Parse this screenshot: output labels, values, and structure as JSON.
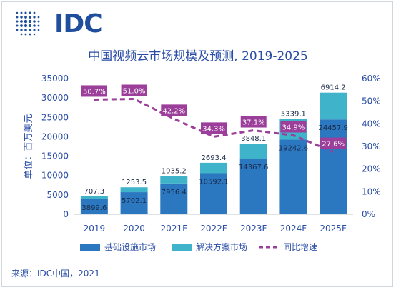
{
  "brand": {
    "name": "IDC",
    "icon": "idc-globe-icon"
  },
  "title": "中国视频云市场规模及预测, 2019-2025",
  "source": "来源：IDC中国，2021",
  "colors": {
    "infra": "#2b78c0",
    "solution": "#3fb3c9",
    "growth": "#9b3f9a",
    "axis_text": "#2a4da6"
  },
  "chart_data": {
    "type": "bar",
    "stacked": true,
    "categories": [
      "2019",
      "2020",
      "2021F",
      "2022F",
      "2023F",
      "2024F",
      "2025F"
    ],
    "series": [
      {
        "name": "基础设施市场",
        "values": [
          3899.6,
          5702.1,
          7956.4,
          10592.1,
          14367.6,
          19242.6,
          24457.9
        ],
        "labels": [
          "3899.6",
          "5702.1",
          "7956.4",
          "10592.1",
          "14367.6",
          "19242.6",
          "24457.9"
        ]
      },
      {
        "name": "解决方案市场",
        "values": [
          707.3,
          1253.5,
          1935.2,
          2693.4,
          3848.1,
          5339.1,
          6914.2
        ],
        "labels": [
          "707.3",
          "1253.5",
          "1935.2",
          "2693.4",
          "3848.1",
          "5339.1",
          "6914.2"
        ]
      }
    ],
    "line_series": {
      "name": "同比增速",
      "style": "dashed",
      "axis": "right",
      "values": [
        50.7,
        51.0,
        42.2,
        34.3,
        37.1,
        34.9,
        27.6
      ],
      "labels": [
        "50.7%",
        "51.0%",
        "42.2%",
        "34.3%",
        "37.1%",
        "34.9%",
        "27.6%"
      ]
    },
    "ylabel": "单位：百万美元",
    "ylim": [
      0,
      35000
    ],
    "yticks": [
      "0",
      "5000",
      "10000",
      "15000",
      "20000",
      "25000",
      "30000",
      "35000"
    ],
    "y2lim": [
      0,
      60
    ],
    "y2ticks": [
      "0%",
      "10%",
      "20%",
      "30%",
      "40%",
      "50%",
      "60%"
    ],
    "grid": false,
    "legend_position": "bottom"
  }
}
